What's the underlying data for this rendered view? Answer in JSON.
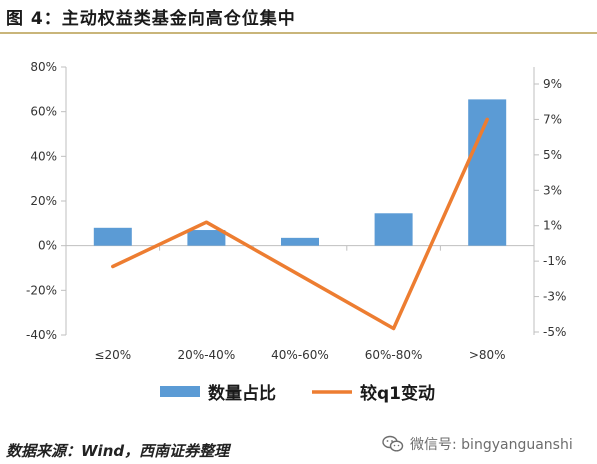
{
  "header": {
    "title": "图 4：主动权益类基金向高仓位集中"
  },
  "footer": {
    "source": "数据来源：Wind，西南证券整理"
  },
  "watermark": {
    "text": "微信号: bingyanguanshi",
    "icon": "wechat-icon"
  },
  "colors": {
    "bar": "#5b9bd5",
    "line": "#ed7d31",
    "axis": "#bfbfbf",
    "text": "#333333",
    "rule": "#c9b57a"
  },
  "chart_data": {
    "type": "bar",
    "categories": [
      "≤20%",
      "20%-40%",
      "40%-60%",
      "60%-80%",
      ">80%"
    ],
    "series": [
      {
        "name": "数量占比",
        "type": "bar",
        "axis": "left",
        "values": [
          8,
          7,
          3.5,
          14.5,
          65.5
        ]
      },
      {
        "name": "较q1变动",
        "type": "line",
        "axis": "right",
        "values": [
          -1.3,
          1.2,
          -1.8,
          -4.8,
          7
        ]
      }
    ],
    "y_left": {
      "min": -40,
      "max": 80,
      "step": 20,
      "ticks": [
        "-40%",
        "-20%",
        "0%",
        "20%",
        "40%",
        "60%",
        "80%"
      ]
    },
    "y_right": {
      "ticks": [
        "-5%",
        "-3%",
        "-1%",
        "1%",
        "3%",
        "5%",
        "7%",
        "9%"
      ],
      "values": [
        -5,
        -3,
        -1,
        1,
        3,
        5,
        7,
        9
      ]
    },
    "legend": {
      "position": "bottom",
      "items": [
        "数量占比",
        "较q1变动"
      ]
    },
    "grid": false
  }
}
